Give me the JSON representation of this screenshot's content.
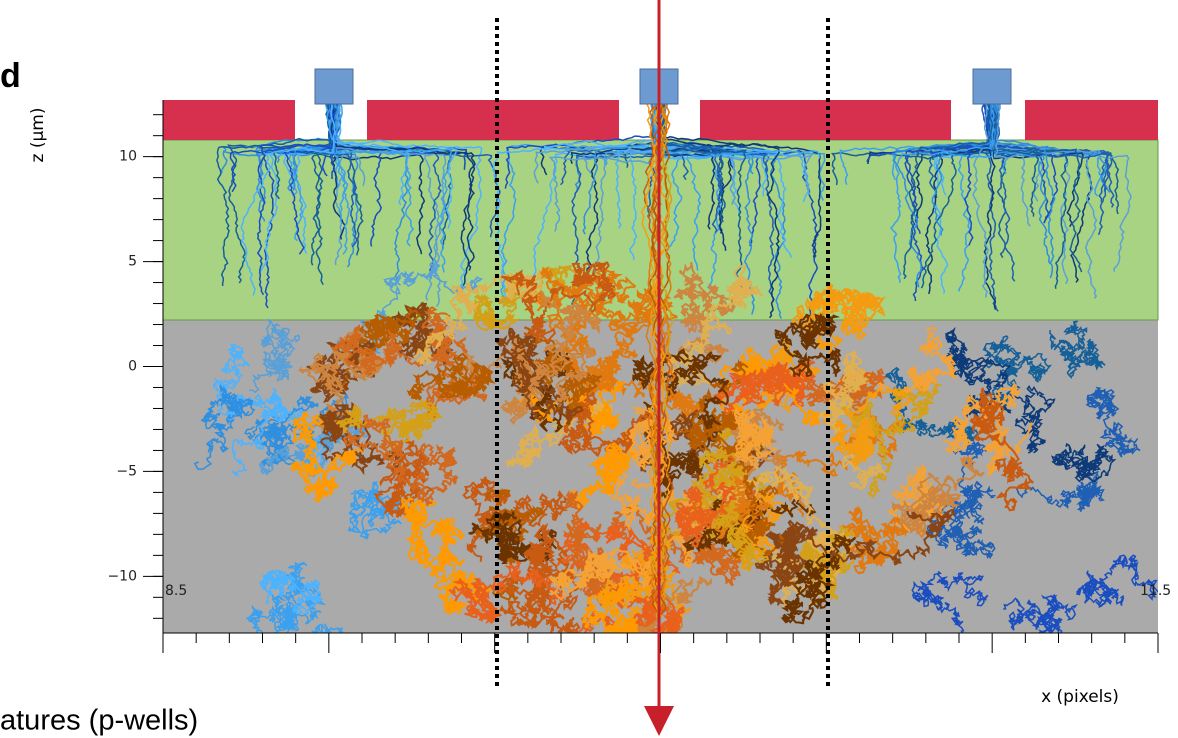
{
  "chart_data": {
    "type": "paths",
    "annotations": [
      "d",
      "atures (p-wells)"
    ],
    "xlabel": "x (pixels)",
    "ylabel": "z (µm)",
    "xlim": [
      8.5,
      11.5
    ],
    "ylim": [
      -12.7,
      12.7
    ],
    "yticks": [
      {
        "value": -10,
        "label": "−10"
      },
      {
        "value": -5,
        "label": "−5"
      },
      0,
      5,
      10
    ]
  }
}
